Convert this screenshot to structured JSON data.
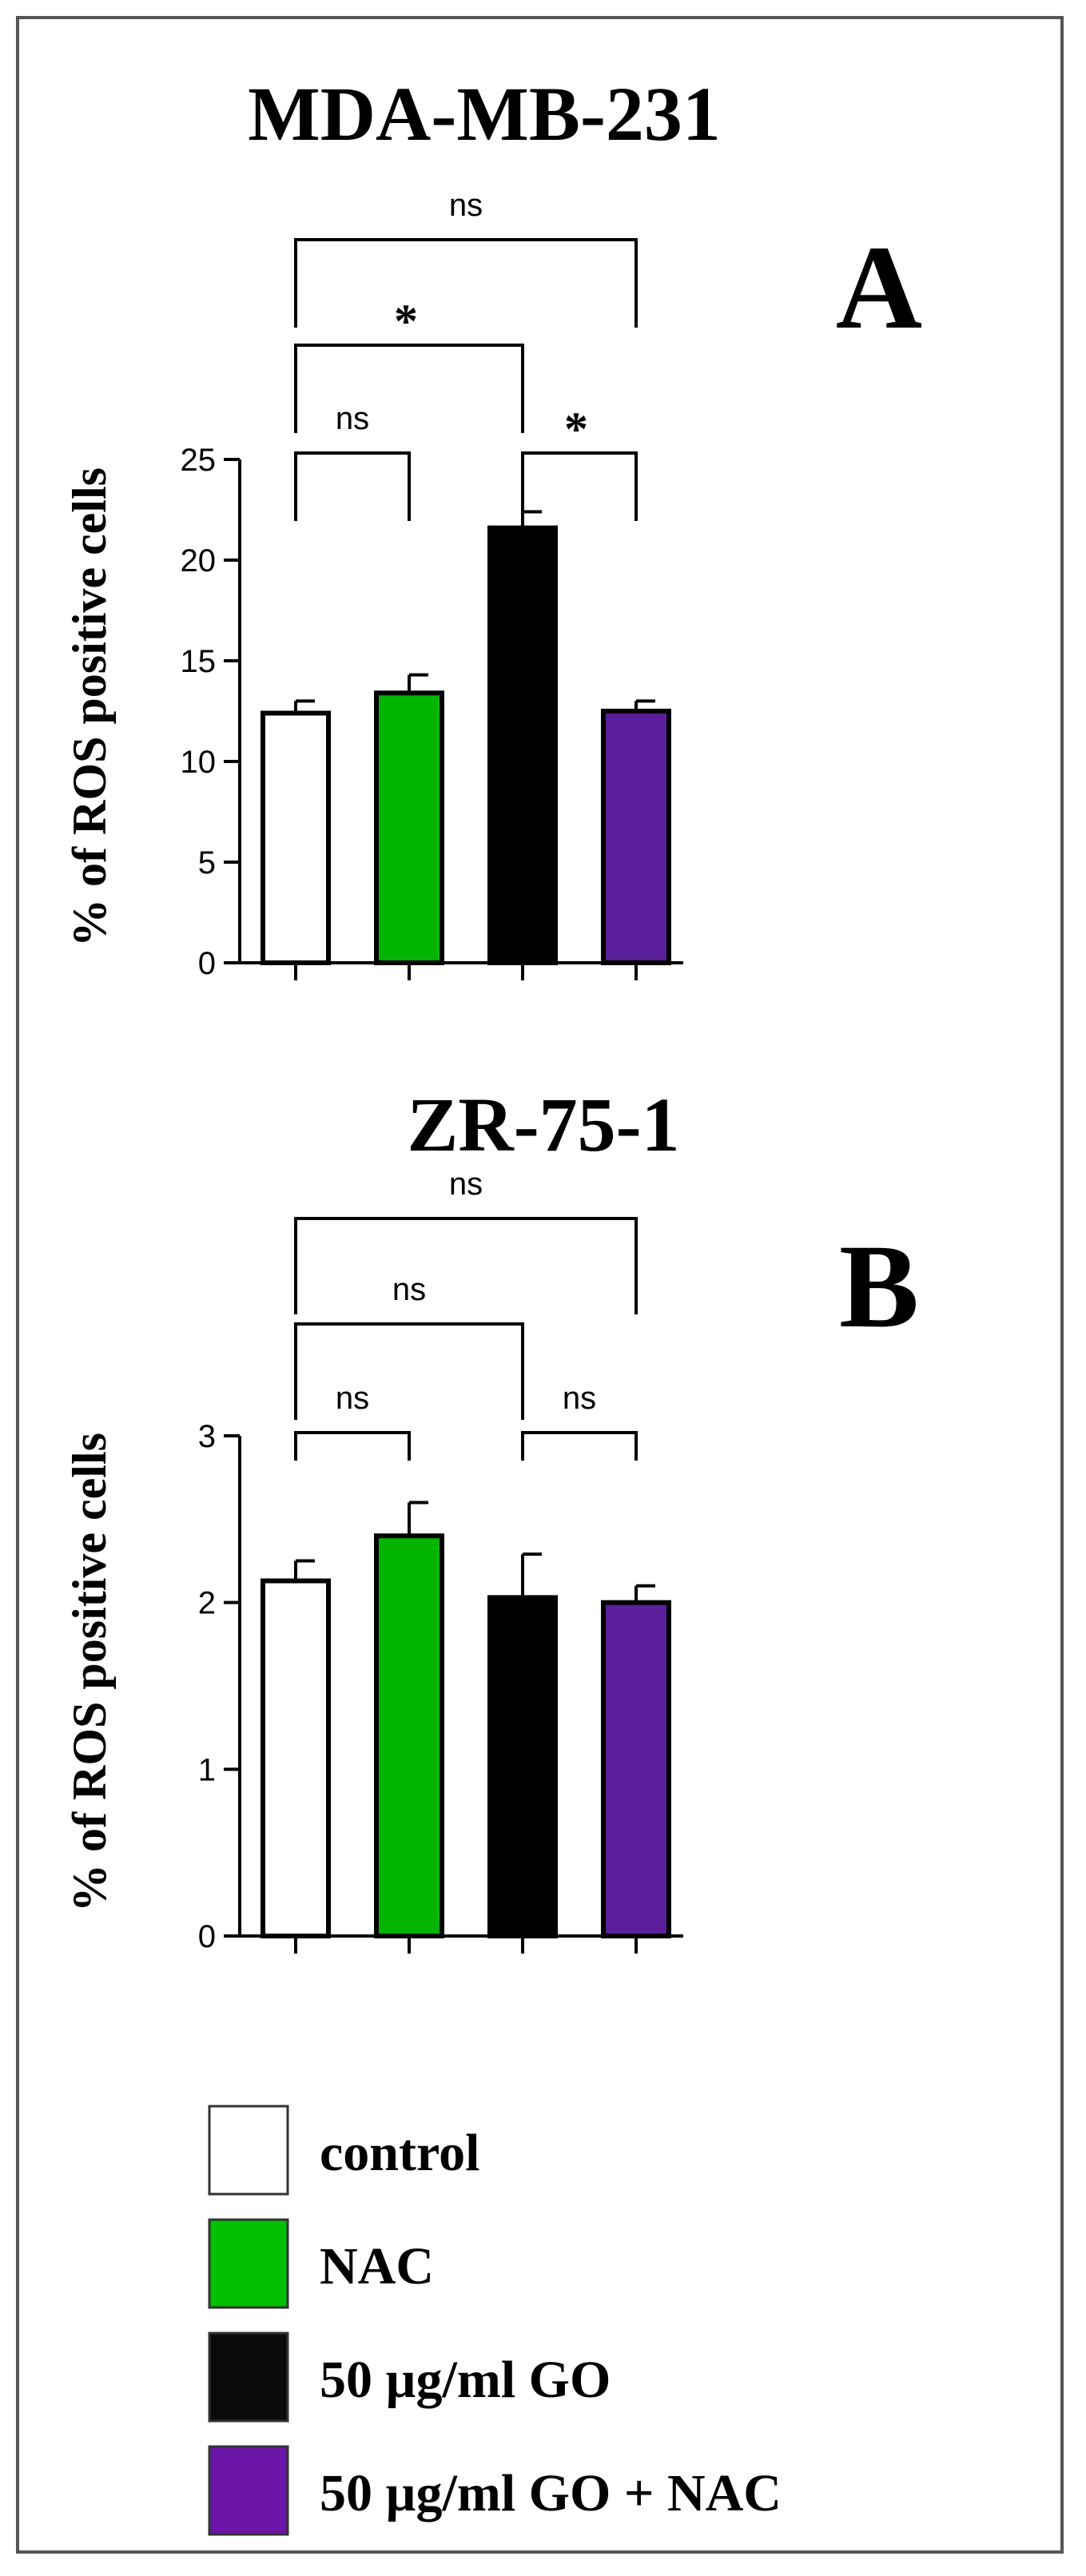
{
  "chart_data": [
    {
      "type": "bar",
      "title": "MDA-MB-231",
      "panel_label": "A",
      "ylabel": "% of ROS positive cells",
      "xlabel": "",
      "ylim": [
        0,
        25
      ],
      "yticks": [
        0,
        5,
        10,
        15,
        20,
        25
      ],
      "categories": [
        "control",
        "NAC",
        "50 µg/ml GO",
        "50 µg/ml GO + NAC"
      ],
      "values": [
        12.4,
        13.4,
        21.6,
        12.5
      ],
      "errors": [
        0.6,
        0.9,
        0.8,
        0.5
      ],
      "colors": [
        "#ffffff",
        "#00b400",
        "#000000",
        "#5a1e9a"
      ],
      "comparisons": [
        {
          "from": 0,
          "to": 3,
          "label": "ns",
          "level": 3
        },
        {
          "from": 0,
          "to": 2,
          "label": "*",
          "level": 2
        },
        {
          "from": 0,
          "to": 1,
          "label": "ns",
          "level": 1
        },
        {
          "from": 2,
          "to": 3,
          "label": "*",
          "level": 1
        }
      ]
    },
    {
      "type": "bar",
      "title": "ZR-75-1",
      "panel_label": "B",
      "ylabel": "% of ROS positive cells",
      "xlabel": "",
      "ylim": [
        0,
        3
      ],
      "yticks": [
        0,
        1,
        2,
        3
      ],
      "categories": [
        "control",
        "NAC",
        "50 µg/ml GO",
        "50 µg/ml GO + NAC"
      ],
      "values": [
        2.13,
        2.4,
        2.03,
        2.0
      ],
      "errors": [
        0.12,
        0.2,
        0.26,
        0.1
      ],
      "colors": [
        "#ffffff",
        "#00b400",
        "#000000",
        "#5a1e9a"
      ],
      "comparisons": [
        {
          "from": 0,
          "to": 3,
          "label": "ns",
          "level": 3
        },
        {
          "from": 0,
          "to": 2,
          "label": "ns",
          "level": 2
        },
        {
          "from": 0,
          "to": 1,
          "label": "ns",
          "level": 1
        },
        {
          "from": 2,
          "to": 3,
          "label": "ns",
          "level": 1
        }
      ]
    }
  ],
  "legend": {
    "items": [
      {
        "label": "control",
        "color": "#ffffff"
      },
      {
        "label": "NAC",
        "color": "#00c000"
      },
      {
        "label": "50 µg/ml GO",
        "color": "#0a0a0a"
      },
      {
        "label": "50 µg/ml GO + NAC",
        "color": "#6a14a8"
      }
    ]
  }
}
